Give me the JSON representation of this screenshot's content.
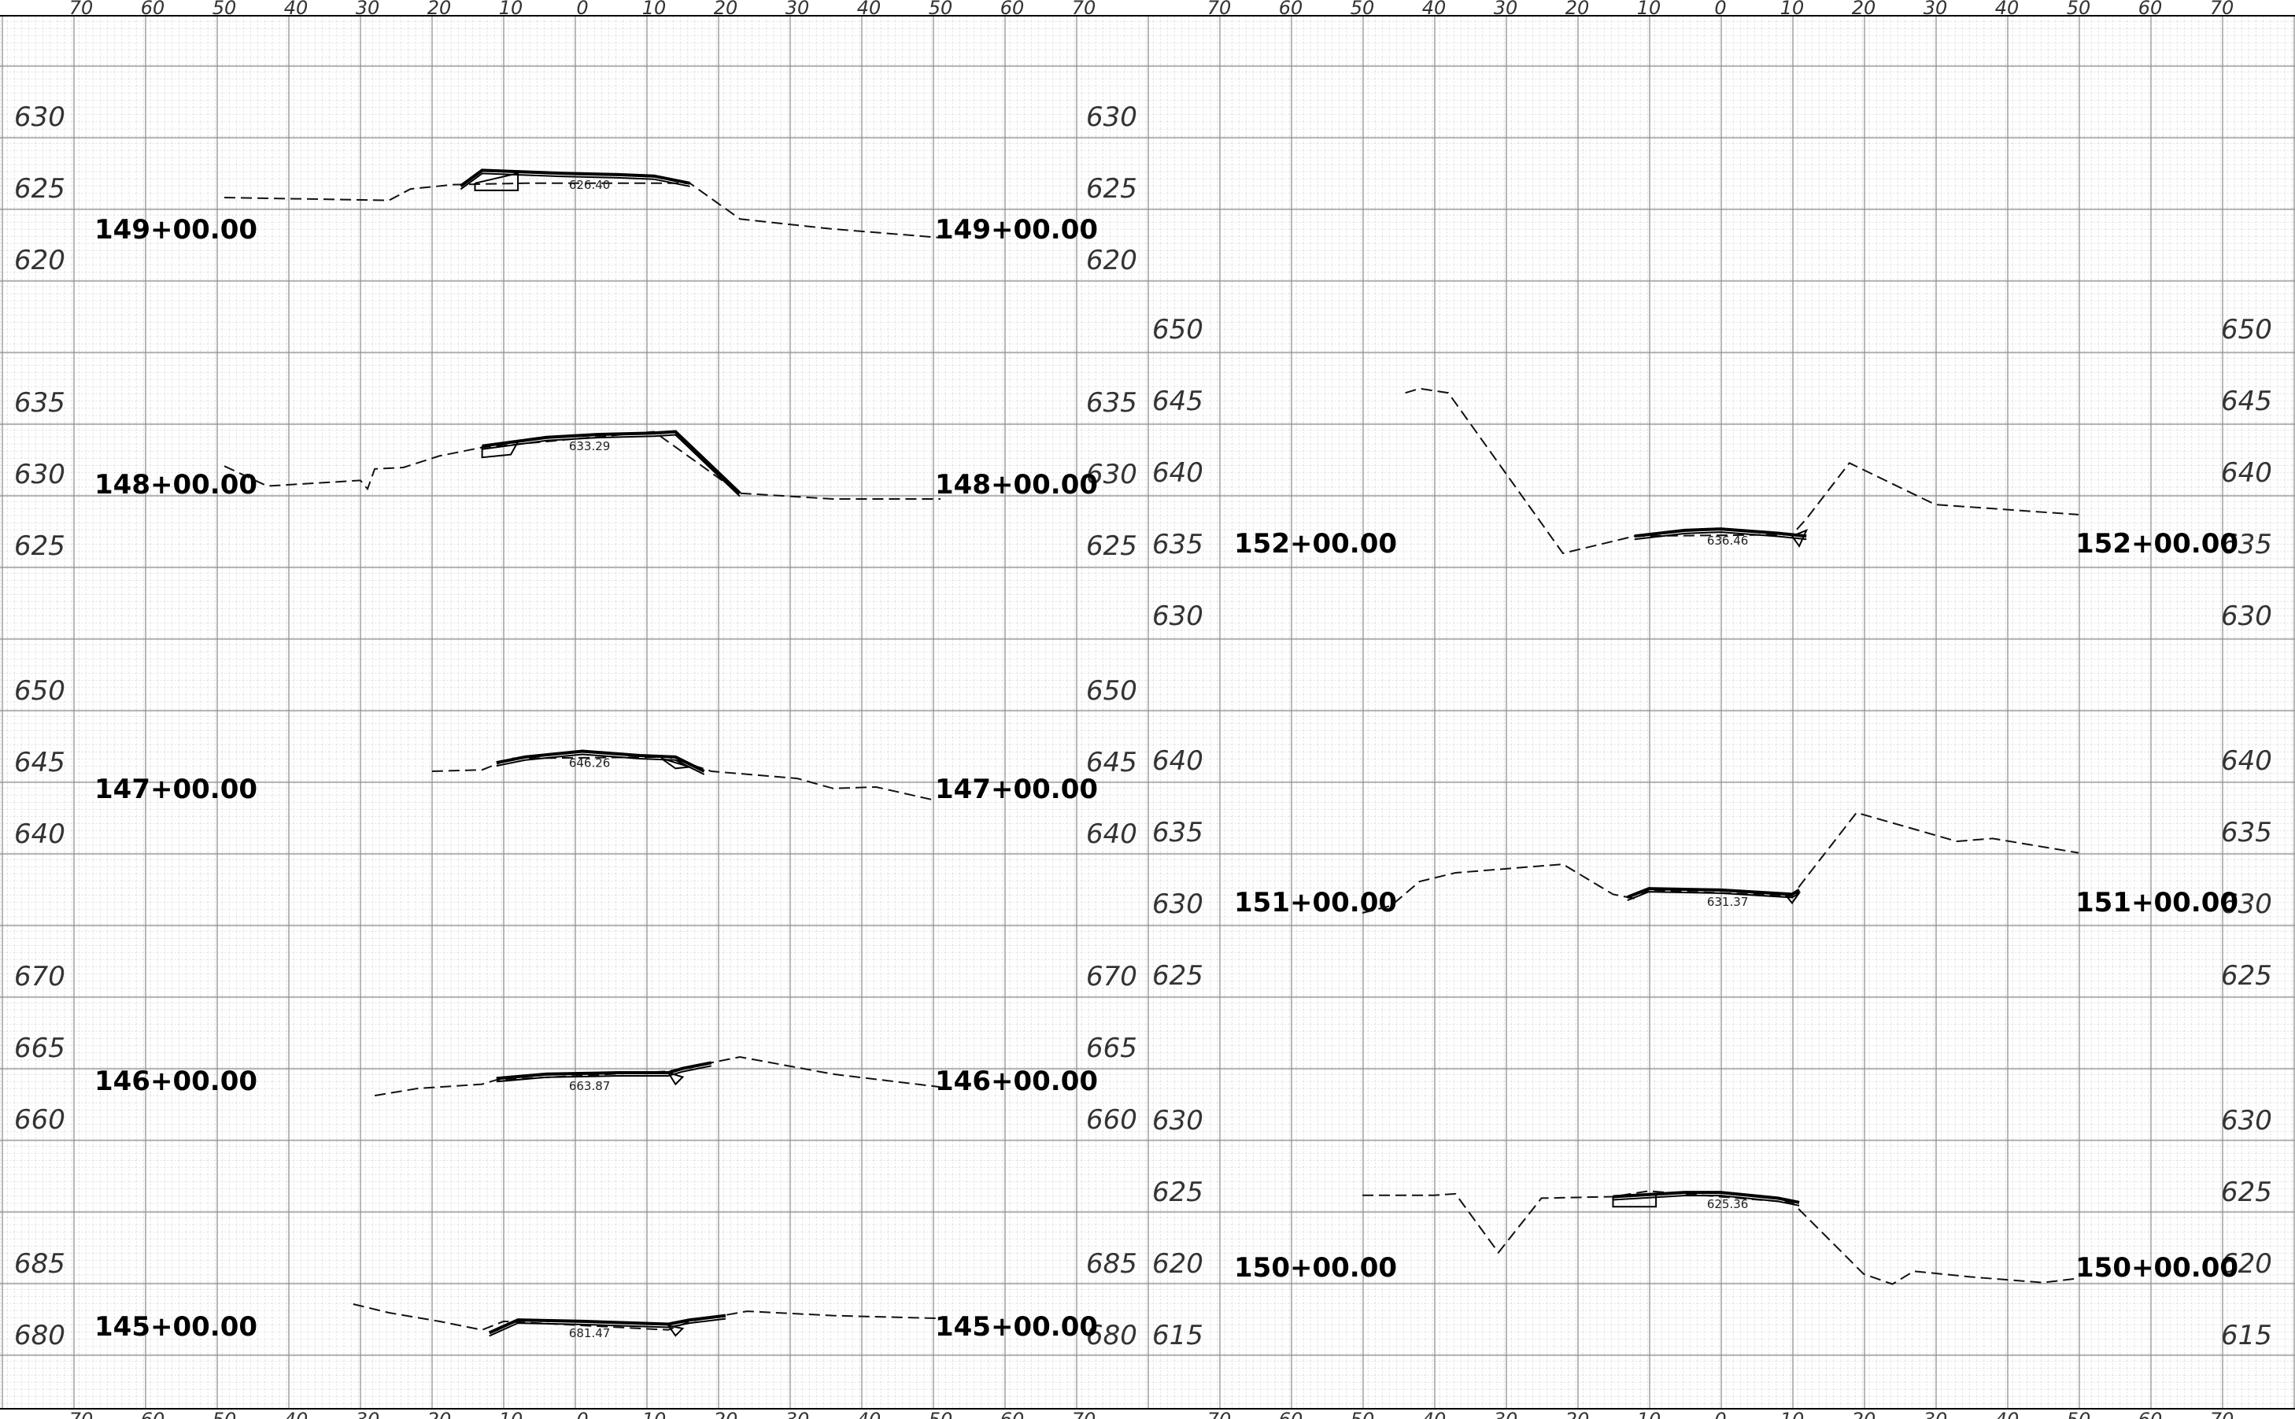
{
  "offset_ticks": [
    70,
    60,
    50,
    40,
    30,
    20,
    10,
    0,
    10,
    20,
    30,
    40,
    50,
    60,
    70
  ],
  "sections": [
    {
      "station": "149+00.00",
      "elevation_labels": [
        "630",
        "625",
        "620"
      ],
      "right_elevation_labels": [],
      "grade_label": "626.40",
      "ground": [
        [
          -50,
          625.0
        ],
        [
          -27,
          624.8
        ],
        [
          -24,
          625.6
        ],
        [
          -18,
          625.9
        ],
        [
          -8,
          626.0
        ],
        [
          15,
          626.0
        ],
        [
          22,
          623.5
        ],
        [
          35,
          622.8
        ],
        [
          50,
          622.2
        ]
      ],
      "roadway": [
        [
          -17,
          625.8
        ],
        [
          -14,
          626.9
        ],
        [
          -3,
          626.7
        ],
        [
          5,
          626.6
        ],
        [
          10,
          626.5
        ],
        [
          15,
          626.0
        ]
      ],
      "structure": [
        [
          -15,
          626.0
        ],
        [
          -9,
          626.7
        ],
        [
          -9,
          625.5
        ],
        [
          -15,
          625.5
        ],
        [
          -15,
          626.0
        ]
      ]
    },
    {
      "station": "148+00.00",
      "elevation_labels": [
        "635",
        "630",
        "625"
      ],
      "right_elevation_labels": [],
      "grade_label": "633.29",
      "ground": [
        [
          -50,
          631.2
        ],
        [
          -44,
          629.8
        ],
        [
          -31,
          630.2
        ],
        [
          -30,
          629.6
        ],
        [
          -29,
          631.0
        ],
        [
          -25,
          631.1
        ],
        [
          -20,
          631.9
        ],
        [
          -14,
          632.5
        ],
        [
          10,
          633.6
        ],
        [
          22,
          629.3
        ],
        [
          35,
          628.9
        ],
        [
          50,
          628.9
        ]
      ],
      "roadway": [
        [
          -14,
          632.6
        ],
        [
          -5,
          633.2
        ],
        [
          2,
          633.4
        ],
        [
          10,
          633.5
        ],
        [
          13,
          633.6
        ],
        [
          22,
          629.3
        ]
      ],
      "structure": [
        [
          -14,
          632.6
        ],
        [
          -9,
          632.9
        ],
        [
          -10,
          632.0
        ],
        [
          -14,
          631.8
        ],
        [
          -14,
          632.6
        ]
      ]
    },
    {
      "station": "147+00.00",
      "elevation_labels": [
        "650",
        "645",
        "640"
      ],
      "right_elevation_labels": [],
      "grade_label": "646.26",
      "ground": [
        [
          -21,
          645.0
        ],
        [
          -14,
          645.1
        ],
        [
          -10,
          645.9
        ],
        [
          12,
          646.0
        ],
        [
          18,
          645.0
        ],
        [
          30,
          644.5
        ],
        [
          35,
          643.8
        ],
        [
          41,
          643.9
        ],
        [
          49,
          643.0
        ]
      ],
      "roadway": [
        [
          -12,
          645.6
        ],
        [
          -8,
          646.0
        ],
        [
          0,
          646.4
        ],
        [
          8,
          646.1
        ],
        [
          13,
          646.0
        ],
        [
          17,
          645.0
        ]
      ],
      "structure": [
        [
          11,
          645.9
        ],
        [
          13,
          645.2
        ],
        [
          15,
          645.3
        ],
        [
          11,
          645.9
        ]
      ]
    },
    {
      "station": "146+00.00",
      "elevation_labels": [
        "670",
        "665",
        "660"
      ],
      "right_elevation_labels": [],
      "grade_label": "663.87",
      "ground": [
        [
          -29,
          662.3
        ],
        [
          -23,
          662.8
        ],
        [
          -14,
          663.1
        ],
        [
          -12,
          663.4
        ],
        [
          12,
          664.0
        ],
        [
          15,
          664.3
        ],
        [
          22,
          665.0
        ],
        [
          35,
          663.8
        ],
        [
          50,
          662.9
        ]
      ],
      "roadway": [
        [
          -12,
          663.5
        ],
        [
          -5,
          663.8
        ],
        [
          5,
          663.9
        ],
        [
          12,
          663.9
        ],
        [
          14,
          664.2
        ],
        [
          18,
          664.6
        ]
      ],
      "structure": [
        [
          12,
          663.9
        ],
        [
          13,
          663.1
        ],
        [
          14,
          663.6
        ],
        [
          12,
          663.9
        ]
      ]
    },
    {
      "station": "145+00.00",
      "elevation_labels": [
        "685",
        "680"
      ],
      "right_elevation_labels": [],
      "grade_label": "681.47",
      "ground": [
        [
          -32,
          682.8
        ],
        [
          -27,
          682.2
        ],
        [
          -20,
          681.6
        ],
        [
          -14,
          681.0
        ],
        [
          -11,
          681.6
        ],
        [
          12,
          681.0
        ],
        [
          15,
          681.6
        ],
        [
          23,
          682.3
        ],
        [
          35,
          682.0
        ],
        [
          50,
          681.8
        ]
      ],
      "roadway": [
        [
          -13,
          680.8
        ],
        [
          -9,
          681.7
        ],
        [
          0,
          681.6
        ],
        [
          12,
          681.4
        ],
        [
          15,
          681.7
        ],
        [
          20,
          682.0
        ]
      ],
      "structure": [
        [
          12,
          681.3
        ],
        [
          13,
          680.6
        ],
        [
          14,
          681.1
        ],
        [
          12,
          681.3
        ]
      ]
    },
    {
      "station": "152+00.00",
      "elevation_labels": [
        "650",
        "645",
        "640",
        "635",
        "630"
      ],
      "right_elevation_labels": [
        "650",
        "645",
        "640",
        "635",
        "630"
      ],
      "grade_label": "636.46",
      "ground": [
        [
          -44,
          646.2
        ],
        [
          -42,
          646.5
        ],
        [
          -38,
          646.2
        ],
        [
          -22,
          635.0
        ],
        [
          -12,
          636.2
        ],
        [
          10,
          636.3
        ],
        [
          12,
          637.4
        ],
        [
          18,
          641.3
        ],
        [
          30,
          638.4
        ],
        [
          50,
          637.7
        ]
      ],
      "roadway": [
        [
          -12,
          636.2
        ],
        [
          -5,
          636.6
        ],
        [
          0,
          636.7
        ],
        [
          8,
          636.4
        ],
        [
          12,
          636.2
        ]
      ],
      "structure": [
        [
          10,
          636.2
        ],
        [
          11,
          635.5
        ],
        [
          12,
          636.6
        ],
        [
          10,
          636.2
        ]
      ]
    },
    {
      "station": "151+00.00",
      "elevation_labels": [
        "640",
        "635",
        "630",
        "625"
      ],
      "right_elevation_labels": [
        "640",
        "635",
        "630",
        "625"
      ],
      "grade_label": "631.37",
      "ground": [
        [
          -50,
          630.0
        ],
        [
          -46,
          630.5
        ],
        [
          -42,
          632.2
        ],
        [
          -37,
          632.8
        ],
        [
          -22,
          633.4
        ],
        [
          -15,
          631.3
        ],
        [
          -12,
          631.0
        ],
        [
          -10,
          631.6
        ],
        [
          10,
          631.2
        ],
        [
          12,
          632.5
        ],
        [
          19,
          637.0
        ],
        [
          33,
          635.0
        ],
        [
          38,
          635.2
        ],
        [
          50,
          634.2
        ]
      ],
      "roadway": [
        [
          -13,
          631.1
        ],
        [
          -10,
          631.7
        ],
        [
          0,
          631.6
        ],
        [
          10,
          631.3
        ],
        [
          11,
          631.6
        ]
      ],
      "structure": [
        [
          9,
          631.3
        ],
        [
          10,
          630.7
        ],
        [
          11,
          631.4
        ],
        [
          9,
          631.3
        ]
      ]
    },
    {
      "station": "150+00.00",
      "elevation_labels": [
        "630",
        "625",
        "620",
        "615"
      ],
      "right_elevation_labels": [
        "630",
        "625",
        "620",
        "615"
      ],
      "grade_label": "625.36",
      "ground": [
        [
          -50,
          625.4
        ],
        [
          -40,
          625.4
        ],
        [
          -37,
          625.5
        ],
        [
          -31,
          621.4
        ],
        [
          -25,
          625.2
        ],
        [
          -15,
          625.3
        ],
        [
          -10,
          625.7
        ],
        [
          10,
          624.9
        ],
        [
          20,
          619.9
        ],
        [
          24,
          619.2
        ],
        [
          27,
          620.1
        ],
        [
          35,
          619.7
        ],
        [
          45,
          619.3
        ],
        [
          50,
          619.6
        ]
      ],
      "roadway": [
        [
          -15,
          625.3
        ],
        [
          -5,
          625.6
        ],
        [
          0,
          625.6
        ],
        [
          8,
          625.2
        ],
        [
          11,
          624.9
        ]
      ],
      "structure": [
        [
          -15,
          625.3
        ],
        [
          -9,
          625.5
        ],
        [
          -9,
          624.6
        ],
        [
          -15,
          624.6
        ],
        [
          -15,
          625.3
        ]
      ]
    }
  ]
}
